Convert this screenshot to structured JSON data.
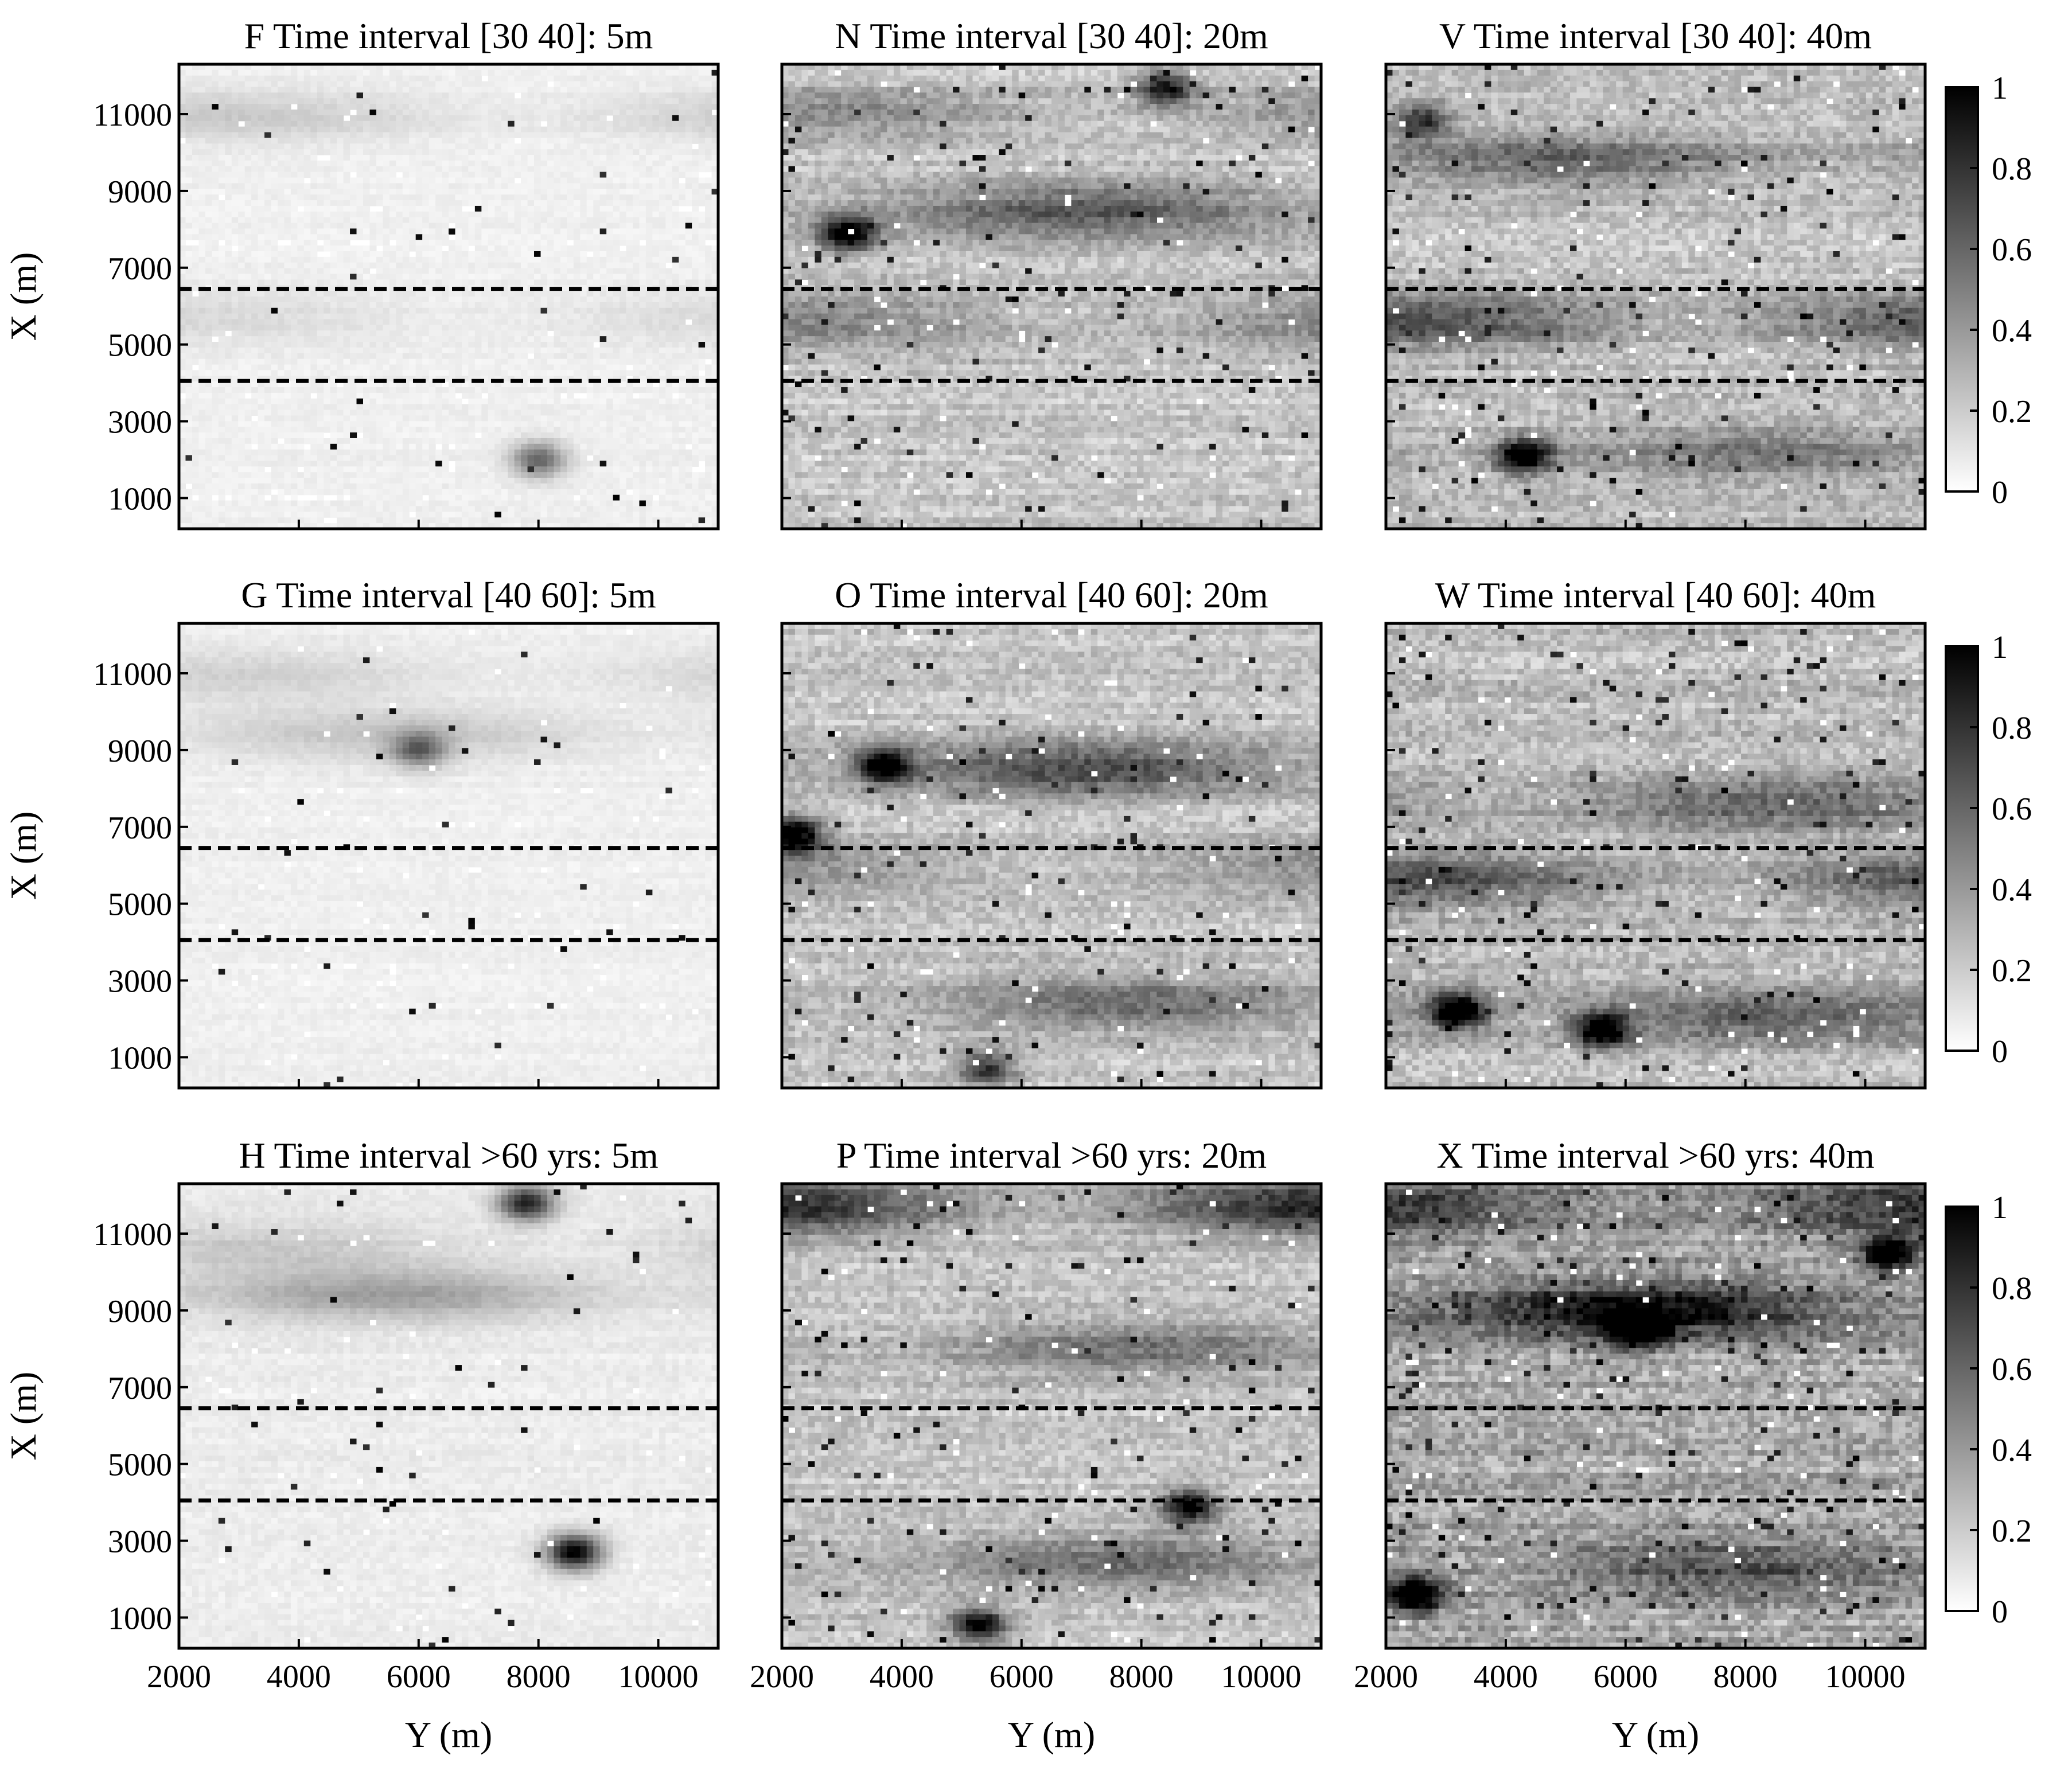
{
  "chart_data": {
    "type": "heatmap",
    "grid": false,
    "colormap": "white-to-black",
    "legend": "colorbar-right-of-each-row",
    "colorbar": {
      "range": [
        0,
        1
      ],
      "ticks": [
        "0",
        "0.2",
        "0.4",
        "0.6",
        "0.8",
        "1"
      ]
    },
    "xlabel": "Y (m)",
    "ylabel": "X (m)",
    "xlim": [
      2000,
      11000
    ],
    "ylim": [
      200,
      12300
    ],
    "xticks": [
      2000,
      4000,
      6000,
      8000,
      10000
    ],
    "xtick_labels": [
      "2000",
      "4000",
      "6000",
      "8000",
      "10000"
    ],
    "yticks": [
      1000,
      3000,
      5000,
      7000,
      9000,
      11000
    ],
    "ytick_labels": [
      "1000",
      "3000",
      "5000",
      "7000",
      "9000",
      "11000"
    ],
    "dashed_lines_x": [
      6450,
      4050
    ],
    "panels": [
      {
        "title": "F Time interval [30 40]: 5m",
        "intensity": 0.08,
        "seed": 11,
        "bands": [
          {
            "x": 10950,
            "amp": 0.12
          },
          {
            "x": 5700,
            "amp": 0.08
          }
        ],
        "blobs": [
          {
            "y": 8000,
            "x": 2000,
            "amp": 0.55
          }
        ]
      },
      {
        "title": "N Time interval [30 40]: 20m",
        "intensity": 0.3,
        "seed": 23,
        "bands": [
          {
            "x": 8500,
            "amp": 0.35
          },
          {
            "x": 5600,
            "amp": 0.22
          },
          {
            "x": 11000,
            "amp": 0.2
          }
        ],
        "blobs": [
          {
            "y": 3100,
            "x": 7900,
            "amp": 0.85
          },
          {
            "y": 8400,
            "x": 11700,
            "amp": 0.7
          }
        ]
      },
      {
        "title": "V Time interval [30 40]: 40m",
        "intensity": 0.33,
        "seed": 37,
        "bands": [
          {
            "x": 5600,
            "amp": 0.38
          },
          {
            "x": 9800,
            "amp": 0.28
          },
          {
            "x": 2200,
            "amp": 0.25
          }
        ],
        "blobs": [
          {
            "y": 4300,
            "x": 2100,
            "amp": 0.9
          },
          {
            "y": 2600,
            "x": 10800,
            "amp": 0.6
          }
        ]
      },
      {
        "title": "G Time interval [40 60]: 5m",
        "intensity": 0.08,
        "seed": 41,
        "bands": [
          {
            "x": 9400,
            "amp": 0.14
          },
          {
            "x": 10900,
            "amp": 0.1
          }
        ],
        "blobs": [
          {
            "y": 6000,
            "x": 9000,
            "amp": 0.5
          }
        ]
      },
      {
        "title": "O Time interval [40 60]: 20m",
        "intensity": 0.3,
        "seed": 53,
        "bands": [
          {
            "x": 8500,
            "amp": 0.4
          },
          {
            "x": 2400,
            "amp": 0.3
          },
          {
            "x": 6000,
            "amp": 0.2
          }
        ],
        "blobs": [
          {
            "y": 2200,
            "x": 6800,
            "amp": 0.95
          },
          {
            "y": 3700,
            "x": 8600,
            "amp": 0.85
          },
          {
            "y": 5400,
            "x": 700,
            "amp": 0.6
          }
        ]
      },
      {
        "title": "W Time interval [40 60]: 40m",
        "intensity": 0.35,
        "seed": 67,
        "bands": [
          {
            "x": 5600,
            "amp": 0.38
          },
          {
            "x": 7600,
            "amp": 0.3
          },
          {
            "x": 2000,
            "amp": 0.3
          }
        ],
        "blobs": [
          {
            "y": 3200,
            "x": 2200,
            "amp": 0.95
          },
          {
            "y": 5600,
            "x": 1700,
            "amp": 0.85
          }
        ]
      },
      {
        "title": "H Time interval >60 yrs: 5m",
        "intensity": 0.1,
        "seed": 71,
        "bands": [
          {
            "x": 9400,
            "amp": 0.25
          },
          {
            "x": 10600,
            "amp": 0.12
          }
        ],
        "blobs": [
          {
            "y": 8600,
            "x": 2700,
            "amp": 0.95
          },
          {
            "y": 7800,
            "x": 11800,
            "amp": 0.8
          }
        ]
      },
      {
        "title": "P Time interval >60 yrs: 20m",
        "intensity": 0.3,
        "seed": 83,
        "bands": [
          {
            "x": 11700,
            "amp": 0.55
          },
          {
            "x": 8000,
            "amp": 0.28
          },
          {
            "x": 2500,
            "amp": 0.28
          }
        ],
        "blobs": [
          {
            "y": 5300,
            "x": 800,
            "amp": 0.8
          },
          {
            "y": 8800,
            "x": 3900,
            "amp": 0.8
          }
        ]
      },
      {
        "title": "X Time interval >60 yrs: 40m",
        "intensity": 0.45,
        "seed": 97,
        "bands": [
          {
            "x": 9000,
            "amp": 0.55
          },
          {
            "x": 11700,
            "amp": 0.4
          },
          {
            "x": 2300,
            "amp": 0.3
          }
        ],
        "blobs": [
          {
            "y": 6200,
            "x": 8500,
            "amp": 1.0
          },
          {
            "y": 10400,
            "x": 10500,
            "amp": 0.9
          },
          {
            "y": 2500,
            "x": 1600,
            "amp": 0.95
          }
        ]
      }
    ]
  }
}
